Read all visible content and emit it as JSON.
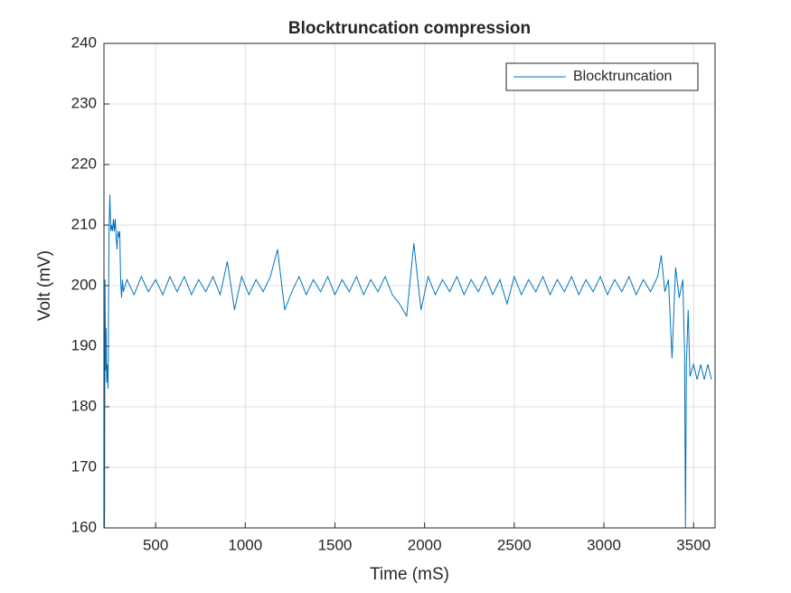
{
  "chart_data": {
    "type": "line",
    "title": "Blocktruncation compression",
    "xlabel": "Time (mS)",
    "ylabel": "Volt (mV)",
    "x": [
      215,
      218,
      221,
      224,
      227,
      230,
      235,
      240,
      245,
      250,
      255,
      260,
      265,
      270,
      275,
      280,
      285,
      290,
      295,
      300,
      305,
      310,
      315,
      320,
      340,
      380,
      420,
      460,
      500,
      540,
      580,
      620,
      660,
      700,
      740,
      780,
      820,
      860,
      900,
      940,
      980,
      1020,
      1060,
      1100,
      1140,
      1180,
      1220,
      1260,
      1300,
      1340,
      1380,
      1420,
      1460,
      1500,
      1540,
      1580,
      1620,
      1660,
      1700,
      1740,
      1780,
      1820,
      1860,
      1900,
      1940,
      1980,
      2020,
      2060,
      2100,
      2140,
      2180,
      2220,
      2260,
      2300,
      2340,
      2380,
      2420,
      2460,
      2500,
      2540,
      2580,
      2620,
      2660,
      2700,
      2740,
      2780,
      2820,
      2860,
      2900,
      2940,
      2980,
      3020,
      3060,
      3100,
      3140,
      3180,
      3220,
      3260,
      3300,
      3320,
      3340,
      3360,
      3380,
      3400,
      3420,
      3440,
      3450,
      3455,
      3460,
      3470,
      3480,
      3500,
      3520,
      3540,
      3560,
      3580,
      3600
    ],
    "series": [
      {
        "name": "Blocktruncation",
        "color": "#0072bd",
        "values": [
          160,
          201,
          186,
          193,
          184,
          187,
          183,
          209,
          215,
          209,
          210,
          209,
          211,
          209,
          211,
          208,
          206,
          209,
          208,
          209,
          201,
          198,
          201,
          199,
          201,
          198.5,
          201.5,
          199,
          201,
          198.5,
          201.5,
          199,
          201.5,
          198.5,
          201,
          199,
          201.5,
          198.5,
          204,
          196,
          201.5,
          198.5,
          201,
          199,
          201.5,
          206,
          196,
          199,
          201.5,
          198.5,
          201,
          199,
          201.5,
          198.5,
          201,
          199,
          201.5,
          198.5,
          201,
          199,
          201.5,
          198.5,
          197,
          195,
          207,
          196,
          201.5,
          198.5,
          201,
          199,
          201.5,
          198.5,
          201,
          199,
          201.5,
          198.5,
          201,
          197,
          201.5,
          198.5,
          201,
          199,
          201.5,
          198.5,
          201,
          199,
          201.5,
          198.5,
          201,
          199,
          201.5,
          198.5,
          201,
          199,
          201.5,
          198.5,
          201,
          199,
          201.5,
          205,
          199,
          201,
          188,
          203,
          198,
          201,
          189,
          160,
          187,
          196,
          185,
          187,
          184.5,
          187,
          184.5,
          187,
          184.5
        ]
      }
    ],
    "xlim": [
      212,
      3620
    ],
    "ylim": [
      160,
      240
    ],
    "xticks": [
      500,
      1000,
      1500,
      2000,
      2500,
      3000,
      3500
    ],
    "yticks": [
      160,
      170,
      180,
      190,
      200,
      210,
      220,
      230,
      240
    ],
    "grid": true,
    "legend": "upper-right"
  }
}
